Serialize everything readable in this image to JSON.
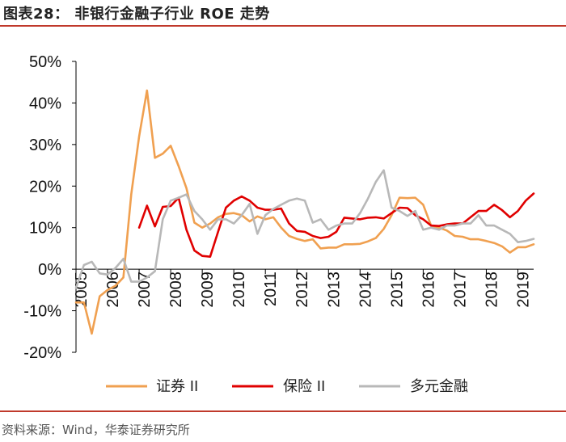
{
  "figure": {
    "title": "图表28：  非银行金融子行业 ROE 走势",
    "source": "资料来源：Wind，华泰证券研究所"
  },
  "chart_data": {
    "type": "line",
    "title": "非银行金融子行业 ROE 走势",
    "xlabel": "",
    "ylabel": "",
    "ylim": [
      -0.2,
      0.5
    ],
    "xlim": [
      2005.0,
      2019.5
    ],
    "y_ticks": [
      {
        "v": 0.5,
        "label": "50%"
      },
      {
        "v": 0.4,
        "label": "40%"
      },
      {
        "v": 0.3,
        "label": "30%"
      },
      {
        "v": 0.2,
        "label": "20%"
      },
      {
        "v": 0.1,
        "label": "10%"
      },
      {
        "v": 0.0,
        "label": "0%"
      },
      {
        "v": -0.1,
        "label": "-10%"
      },
      {
        "v": -0.2,
        "label": "-20%"
      }
    ],
    "x_ticks": [
      {
        "v": 2005,
        "label": "2005"
      },
      {
        "v": 2006,
        "label": "2006"
      },
      {
        "v": 2007,
        "label": "2007"
      },
      {
        "v": 2008,
        "label": "2008"
      },
      {
        "v": 2009,
        "label": "2009"
      },
      {
        "v": 2010,
        "label": "2010"
      },
      {
        "v": 2011,
        "label": "2011"
      },
      {
        "v": 2012,
        "label": "2012"
      },
      {
        "v": 2013,
        "label": "2013"
      },
      {
        "v": 2014,
        "label": "2014"
      },
      {
        "v": 2015,
        "label": "2015"
      },
      {
        "v": 2016,
        "label": "2016"
      },
      {
        "v": 2017,
        "label": "2017"
      },
      {
        "v": 2018,
        "label": "2018"
      },
      {
        "v": 2019,
        "label": "2019"
      }
    ],
    "series": [
      {
        "name": "证券 II",
        "color": "#f0a050",
        "points": [
          [
            2005.0,
            -0.08
          ],
          [
            2005.25,
            -0.08
          ],
          [
            2005.5,
            -0.155
          ],
          [
            2005.75,
            -0.065
          ],
          [
            2006.0,
            -0.05
          ],
          [
            2006.25,
            -0.04
          ],
          [
            2006.5,
            -0.02
          ],
          [
            2006.75,
            0.18
          ],
          [
            2007.0,
            0.32
          ],
          [
            2007.25,
            0.43
          ],
          [
            2007.5,
            0.268
          ],
          [
            2007.75,
            0.278
          ],
          [
            2008.0,
            0.297
          ],
          [
            2008.25,
            0.248
          ],
          [
            2008.5,
            0.195
          ],
          [
            2008.75,
            0.112
          ],
          [
            2009.0,
            0.1
          ],
          [
            2009.25,
            0.11
          ],
          [
            2009.5,
            0.125
          ],
          [
            2009.75,
            0.133
          ],
          [
            2010.0,
            0.135
          ],
          [
            2010.25,
            0.13
          ],
          [
            2010.5,
            0.115
          ],
          [
            2010.75,
            0.127
          ],
          [
            2011.0,
            0.12
          ],
          [
            2011.25,
            0.125
          ],
          [
            2011.5,
            0.1
          ],
          [
            2011.75,
            0.08
          ],
          [
            2012.0,
            0.073
          ],
          [
            2012.25,
            0.068
          ],
          [
            2012.5,
            0.072
          ],
          [
            2012.75,
            0.05
          ],
          [
            2013.0,
            0.052
          ],
          [
            2013.25,
            0.052
          ],
          [
            2013.5,
            0.06
          ],
          [
            2013.75,
            0.06
          ],
          [
            2014.0,
            0.061
          ],
          [
            2014.25,
            0.067
          ],
          [
            2014.5,
            0.075
          ],
          [
            2014.75,
            0.097
          ],
          [
            2015.0,
            0.13
          ],
          [
            2015.25,
            0.172
          ],
          [
            2015.5,
            0.171
          ],
          [
            2015.75,
            0.172
          ],
          [
            2016.0,
            0.155
          ],
          [
            2016.25,
            0.105
          ],
          [
            2016.5,
            0.1
          ],
          [
            2016.75,
            0.093
          ],
          [
            2017.0,
            0.08
          ],
          [
            2017.25,
            0.078
          ],
          [
            2017.5,
            0.072
          ],
          [
            2017.75,
            0.072
          ],
          [
            2018.0,
            0.068
          ],
          [
            2018.25,
            0.063
          ],
          [
            2018.5,
            0.055
          ],
          [
            2018.75,
            0.04
          ],
          [
            2019.0,
            0.053
          ],
          [
            2019.25,
            0.053
          ],
          [
            2019.5,
            0.06
          ]
        ]
      },
      {
        "name": "保险 II",
        "color": "#e00000",
        "points": [
          [
            2007.0,
            0.1
          ],
          [
            2007.25,
            0.153
          ],
          [
            2007.5,
            0.103
          ],
          [
            2007.75,
            0.15
          ],
          [
            2008.0,
            0.152
          ],
          [
            2008.25,
            0.172
          ],
          [
            2008.5,
            0.095
          ],
          [
            2008.75,
            0.045
          ],
          [
            2009.0,
            0.032
          ],
          [
            2009.25,
            0.03
          ],
          [
            2009.5,
            0.09
          ],
          [
            2009.75,
            0.148
          ],
          [
            2010.0,
            0.165
          ],
          [
            2010.25,
            0.175
          ],
          [
            2010.5,
            0.165
          ],
          [
            2010.75,
            0.148
          ],
          [
            2011.0,
            0.143
          ],
          [
            2011.25,
            0.143
          ],
          [
            2011.5,
            0.146
          ],
          [
            2011.75,
            0.11
          ],
          [
            2012.0,
            0.092
          ],
          [
            2012.25,
            0.09
          ],
          [
            2012.5,
            0.08
          ],
          [
            2012.75,
            0.075
          ],
          [
            2013.0,
            0.078
          ],
          [
            2013.25,
            0.09
          ],
          [
            2013.5,
            0.124
          ],
          [
            2013.75,
            0.122
          ],
          [
            2014.0,
            0.12
          ],
          [
            2014.25,
            0.124
          ],
          [
            2014.5,
            0.125
          ],
          [
            2014.75,
            0.122
          ],
          [
            2015.0,
            0.135
          ],
          [
            2015.25,
            0.148
          ],
          [
            2015.5,
            0.147
          ],
          [
            2015.75,
            0.13
          ],
          [
            2016.0,
            0.12
          ],
          [
            2016.25,
            0.105
          ],
          [
            2016.5,
            0.104
          ],
          [
            2016.75,
            0.108
          ],
          [
            2017.0,
            0.11
          ],
          [
            2017.25,
            0.11
          ],
          [
            2017.5,
            0.125
          ],
          [
            2017.75,
            0.14
          ],
          [
            2018.0,
            0.14
          ],
          [
            2018.25,
            0.155
          ],
          [
            2018.5,
            0.142
          ],
          [
            2018.75,
            0.125
          ],
          [
            2019.0,
            0.14
          ],
          [
            2019.25,
            0.165
          ],
          [
            2019.5,
            0.182
          ]
        ]
      },
      {
        "name": "多元金融",
        "color": "#b8b8b8",
        "points": [
          [
            2005.0,
            -0.045
          ],
          [
            2005.25,
            0.01
          ],
          [
            2005.5,
            0.018
          ],
          [
            2005.75,
            -0.01
          ],
          [
            2006.0,
            -0.013
          ],
          [
            2006.25,
            0.003
          ],
          [
            2006.5,
            0.025
          ],
          [
            2006.75,
            -0.03
          ],
          [
            2007.0,
            -0.03
          ],
          [
            2007.25,
            -0.02
          ],
          [
            2007.5,
            -0.005
          ],
          [
            2007.75,
            0.12
          ],
          [
            2008.0,
            0.165
          ],
          [
            2008.25,
            0.172
          ],
          [
            2008.5,
            0.18
          ],
          [
            2008.75,
            0.14
          ],
          [
            2009.0,
            0.12
          ],
          [
            2009.25,
            0.095
          ],
          [
            2009.5,
            0.12
          ],
          [
            2009.75,
            0.12
          ],
          [
            2010.0,
            0.11
          ],
          [
            2010.25,
            0.13
          ],
          [
            2010.5,
            0.157
          ],
          [
            2010.75,
            0.085
          ],
          [
            2011.0,
            0.13
          ],
          [
            2011.25,
            0.145
          ],
          [
            2011.5,
            0.155
          ],
          [
            2011.75,
            0.165
          ],
          [
            2012.0,
            0.17
          ],
          [
            2012.25,
            0.165
          ],
          [
            2012.5,
            0.112
          ],
          [
            2012.75,
            0.12
          ],
          [
            2013.0,
            0.095
          ],
          [
            2013.25,
            0.105
          ],
          [
            2013.5,
            0.11
          ],
          [
            2013.75,
            0.11
          ],
          [
            2014.0,
            0.135
          ],
          [
            2014.25,
            0.17
          ],
          [
            2014.5,
            0.21
          ],
          [
            2014.75,
            0.238
          ],
          [
            2015.0,
            0.148
          ],
          [
            2015.25,
            0.14
          ],
          [
            2015.5,
            0.128
          ],
          [
            2015.75,
            0.14
          ],
          [
            2016.0,
            0.095
          ],
          [
            2016.25,
            0.1
          ],
          [
            2016.5,
            0.095
          ],
          [
            2016.75,
            0.105
          ],
          [
            2017.0,
            0.105
          ],
          [
            2017.25,
            0.11
          ],
          [
            2017.5,
            0.11
          ],
          [
            2017.75,
            0.13
          ],
          [
            2018.0,
            0.105
          ],
          [
            2018.25,
            0.105
          ],
          [
            2018.5,
            0.095
          ],
          [
            2018.75,
            0.085
          ],
          [
            2019.0,
            0.065
          ],
          [
            2019.25,
            0.068
          ],
          [
            2019.5,
            0.073
          ]
        ]
      }
    ],
    "legend": {
      "position": "bottom"
    }
  }
}
